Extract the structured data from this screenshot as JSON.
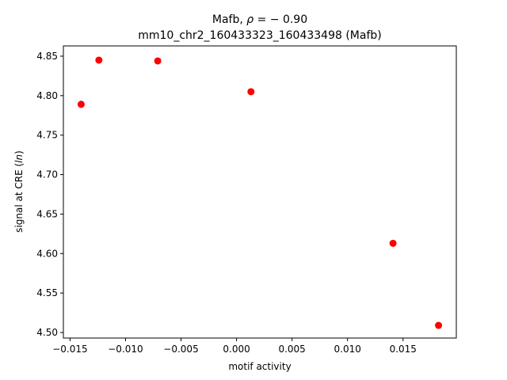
{
  "chart_data": {
    "type": "scatter",
    "title_line1_prefix": "Mafb, ",
    "title_line1_rho": "ρ",
    "title_line1_rest": " = − 0.90",
    "title_line2": "mm10_chr2_160433323_160433498 (Mafb)",
    "xlabel": "motif activity",
    "ylabel_prefix": "signal at CRE (",
    "ylabel_ln": "ln",
    "ylabel_suffix": ")",
    "xlim": [
      -0.0156,
      0.0198
    ],
    "ylim": [
      4.493,
      4.863
    ],
    "xticks": [
      {
        "value": -0.015,
        "label": "−0.015"
      },
      {
        "value": -0.01,
        "label": "−0.010"
      },
      {
        "value": -0.005,
        "label": "−0.005"
      },
      {
        "value": 0.0,
        "label": "0.000"
      },
      {
        "value": 0.005,
        "label": "0.005"
      },
      {
        "value": 0.01,
        "label": "0.010"
      },
      {
        "value": 0.015,
        "label": "0.015"
      }
    ],
    "yticks": [
      {
        "value": 4.5,
        "label": "4.50"
      },
      {
        "value": 4.55,
        "label": "4.55"
      },
      {
        "value": 4.6,
        "label": "4.60"
      },
      {
        "value": 4.65,
        "label": "4.65"
      },
      {
        "value": 4.7,
        "label": "4.70"
      },
      {
        "value": 4.75,
        "label": "4.75"
      },
      {
        "value": 4.8,
        "label": "4.80"
      },
      {
        "value": 4.85,
        "label": "4.85"
      }
    ],
    "points": [
      {
        "x": -0.014,
        "y": 4.789
      },
      {
        "x": -0.0124,
        "y": 4.845
      },
      {
        "x": -0.0071,
        "y": 4.844
      },
      {
        "x": 0.0013,
        "y": 4.805
      },
      {
        "x": 0.0141,
        "y": 4.613
      },
      {
        "x": 0.0182,
        "y": 4.509
      }
    ],
    "marker_color": "#ff0000",
    "grid": false
  }
}
